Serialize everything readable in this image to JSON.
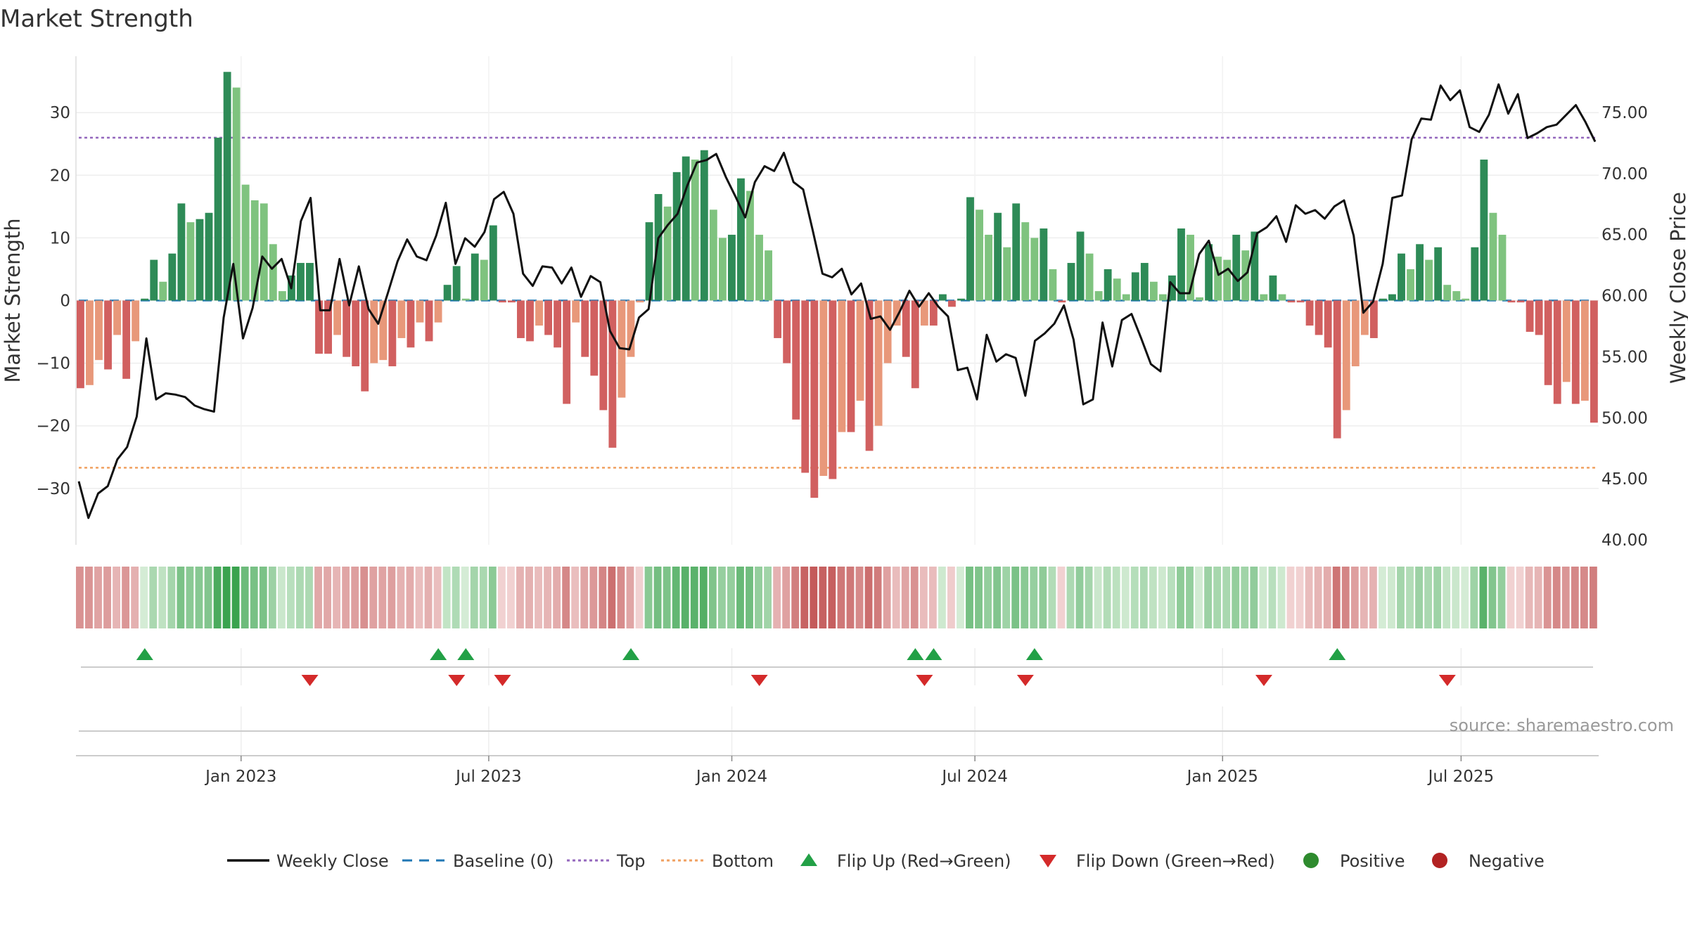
{
  "chart_data": {
    "type": "bar",
    "title": "Market Strength",
    "ylabel": "Market Strength",
    "y2label": "Weekly Close Price",
    "ylim": [
      -39,
      39
    ],
    "y2lim": [
      39.6,
      79.6
    ],
    "yticks": [
      30,
      20,
      10,
      0,
      -10,
      -20,
      -30
    ],
    "ytick_labels": [
      "30",
      "20",
      "10",
      "0",
      "−10",
      "−20",
      "−30"
    ],
    "y2ticks": [
      75,
      70,
      65,
      60,
      55,
      50,
      45,
      40
    ],
    "y2tick_labels": [
      "75.00",
      "70.00",
      "65.00",
      "60.00",
      "55.00",
      "50.00",
      "45.00",
      "40.00"
    ],
    "x_axis": {
      "ticks": [
        {
          "week": 17.5,
          "label": "Jan 2023"
        },
        {
          "week": 44.5,
          "label": "Jul 2023"
        },
        {
          "week": 71,
          "label": "Jan 2024"
        },
        {
          "week": 97.5,
          "label": "Jul 2024"
        },
        {
          "week": 124.5,
          "label": "Jan 2025"
        },
        {
          "week": 150.5,
          "label": "Jul 2025"
        }
      ]
    },
    "top_level": 26,
    "bottom_level": -26.7,
    "baseline": 0,
    "strength": [
      -14,
      -13.5,
      -9.5,
      -11,
      -5.5,
      -12.5,
      -6.5,
      0.3,
      6.5,
      3,
      7.5,
      15.5,
      12.5,
      13,
      14,
      26,
      36.5,
      34,
      18.5,
      16,
      15.5,
      9,
      1.5,
      4,
      6,
      6,
      -8.5,
      -8.5,
      -5.5,
      -9,
      -10.5,
      -14.5,
      -10,
      -9.5,
      -10.5,
      -6,
      -7.5,
      -3.5,
      -6.5,
      -3.5,
      2.5,
      5.5,
      0.3,
      7.5,
      6.5,
      12,
      -0.3,
      -0.3,
      -6,
      -6.5,
      -4,
      -5.5,
      -7.5,
      -16.5,
      -3.5,
      -9,
      -12,
      -17.5,
      -23.5,
      -15.5,
      -9,
      -0.3,
      12.5,
      17,
      15,
      20.5,
      23,
      22.5,
      24,
      14.5,
      10,
      10.5,
      19.5,
      17.5,
      10.5,
      8,
      -6,
      -10,
      -19,
      -27.5,
      -31.5,
      -28,
      -28.5,
      -21,
      -21,
      -16,
      -24,
      -20,
      -10,
      -4,
      -9,
      -14,
      -4,
      -4,
      1,
      -1,
      0.3,
      16.5,
      14.5,
      10.5,
      14,
      8.5,
      15.5,
      12.5,
      10,
      11.5,
      5,
      -0.3,
      6,
      11,
      7.5,
      1.5,
      5,
      3.5,
      1,
      4.5,
      6,
      3,
      1,
      4,
      11.5,
      10.5,
      0.5,
      9,
      7,
      6.5,
      10.5,
      8,
      11,
      1,
      4,
      1,
      -0.3,
      -0.3,
      -4,
      -5.5,
      -7.5,
      -22,
      -17.5,
      -10.5,
      -5.5,
      -6,
      0.3,
      1,
      7.5,
      5,
      9,
      6.5,
      8.5,
      2.5,
      1.5,
      0.3,
      8.5,
      22.5,
      14,
      10.5,
      -0.3,
      -0.3,
      -5,
      -5.5,
      -13.5,
      -16.5,
      -13,
      -16.5,
      -16,
      -19.5
    ],
    "weekly_close": [
      44.8,
      41.8,
      43.8,
      44.4,
      46.6,
      47.6,
      50.1,
      56.5,
      51.5,
      52,
      51.9,
      51.7,
      51,
      50.7,
      50.5,
      58.2,
      62.6,
      56.5,
      59,
      63.2,
      62.2,
      63,
      60.6,
      66.1,
      68,
      58.8,
      58.8,
      63,
      59.2,
      62.4,
      58.9,
      57.7,
      60.2,
      62.8,
      64.6,
      63.2,
      62.9,
      64.9,
      67.6,
      62.6,
      64.7,
      64,
      65.2,
      67.9,
      68.5,
      66.7,
      61.8,
      60.8,
      62.4,
      62.3,
      61,
      62.3,
      59.9,
      61.6,
      61.1,
      57.1,
      55.7,
      55.6,
      58.2,
      58.9,
      64.7,
      65.8,
      66.7,
      69,
      70.9,
      71.1,
      71.6,
      69.7,
      68.1,
      66.4,
      69.3,
      70.6,
      70.2,
      71.7,
      69.3,
      68.7,
      65.3,
      61.8,
      61.5,
      62.2,
      60.1,
      61,
      58.1,
      58.3,
      57.2,
      58.7,
      60.4,
      59.1,
      60.2,
      59.1,
      58.3,
      53.9,
      54.1,
      51.5,
      56.8,
      54.6,
      55.2,
      54.9,
      51.8,
      56.3,
      56.9,
      57.7,
      59.2,
      56.4,
      51.1,
      51.5,
      57.8,
      54.2,
      58,
      58.5,
      56.5,
      54.4,
      53.8,
      61.1,
      60.2,
      60.2,
      63.4,
      64.5,
      61.7,
      62.2,
      61.2,
      61.9,
      65.1,
      65.6,
      66.5,
      64.4,
      67.4,
      66.7,
      67,
      66.3,
      67.3,
      67.8,
      64.9,
      58.6,
      59.5,
      62.6,
      68,
      68.2,
      72.8,
      74.5,
      74.4,
      77.2,
      76,
      76.8,
      73.8,
      73.4,
      74.8,
      77.3,
      74.9,
      76.5,
      72.9,
      73.3,
      73.8,
      74,
      74.8,
      75.6,
      74.2,
      72.6
    ],
    "flip_up_weeks": [
      7,
      39,
      42,
      60,
      91,
      93,
      104,
      137
    ],
    "flip_down_weeks": [
      25,
      41,
      46,
      74,
      92,
      103,
      129,
      149
    ],
    "legend": [
      "Weekly Close",
      "Baseline (0)",
      "Top",
      "Bottom",
      "Flip Up (Red→Green)",
      "Flip Down (Green→Red)",
      "Positive",
      "Negative"
    ],
    "legend_position": "bottom-center",
    "colors": {
      "green_dark": "#2e8b57",
      "green_light": "#7fc37f",
      "red_dark": "#d16060",
      "red_light": "#e8987a",
      "close_line": "#111111",
      "baseline": "#1f77b4",
      "top": "#9467bd",
      "bottom": "#f0a060",
      "flip_up": "#22a046",
      "flip_down": "#d42a2a",
      "positive": "#2e8b2e",
      "negative": "#b22222"
    },
    "source": "source: sharemaestro.com"
  }
}
